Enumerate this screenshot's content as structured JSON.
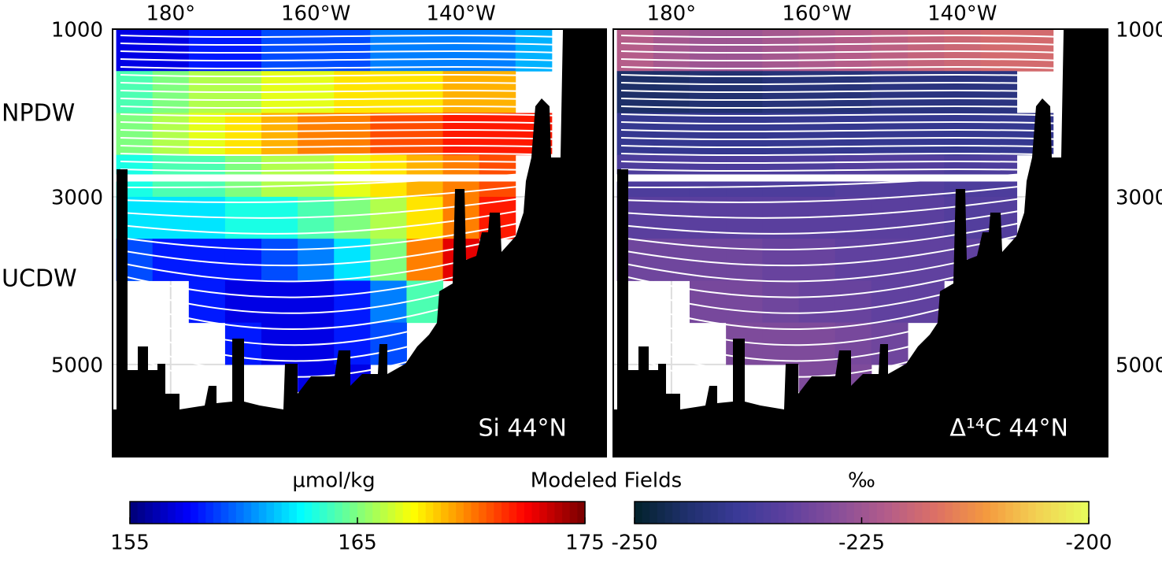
{
  "title": "Modeled Fields",
  "chart_data": [
    {
      "type": "heatmap",
      "label": "Si 44°N",
      "annotations": [
        "NPDW",
        "UCDW"
      ],
      "yaxis_side": "left",
      "x": [
        175,
        180,
        185,
        190,
        195,
        200,
        205,
        210,
        215,
        220,
        225,
        230,
        235
      ],
      "y": [
        1250,
        1750,
        2250,
        2750,
        3250,
        3750,
        4250,
        4750,
        5250
      ],
      "values": [
        [
          157,
          157,
          158,
          158,
          159,
          159,
          159,
          160,
          160,
          160,
          160,
          161,
          null
        ],
        [
          164,
          165,
          166,
          166,
          167,
          167,
          168,
          168,
          168,
          169,
          169,
          null,
          null
        ],
        [
          165,
          166,
          167,
          168,
          169,
          170,
          170,
          171,
          171,
          172,
          172,
          172,
          null
        ],
        [
          163,
          164,
          164,
          165,
          166,
          166,
          167,
          168,
          169,
          170,
          171,
          null,
          null
        ],
        [
          162,
          162,
          162,
          163,
          163,
          164,
          165,
          166,
          168,
          170,
          172,
          null,
          null
        ],
        [
          159,
          158,
          158,
          158,
          159,
          160,
          162,
          165,
          170,
          173,
          null,
          null,
          null
        ],
        [
          null,
          null,
          158,
          157,
          157,
          157,
          158,
          160,
          164,
          null,
          null,
          null,
          null
        ],
        [
          null,
          null,
          null,
          158,
          157,
          157,
          158,
          159,
          null,
          null,
          null,
          null,
          null
        ],
        [
          null,
          null,
          null,
          null,
          null,
          157,
          157,
          null,
          null,
          null,
          null,
          null,
          null
        ]
      ],
      "xlim": [
        172,
        240
      ],
      "ylim": [
        1000,
        6100
      ],
      "xticks": [
        {
          "value": 180,
          "label": "180°"
        },
        {
          "value": 200,
          "label": "160°W"
        },
        {
          "value": 220,
          "label": "140°W"
        }
      ],
      "yticks": [
        1000,
        3000,
        5000
      ],
      "colorbar": {
        "label": "µmol/kg",
        "lim": [
          155,
          175
        ],
        "ticks": [
          155,
          165,
          175
        ],
        "colors": [
          "#00007f",
          "#0000ff",
          "#007fff",
          "#00ffff",
          "#7fff7f",
          "#ffff00",
          "#ff7f00",
          "#ff0000",
          "#7f0000"
        ]
      }
    },
    {
      "type": "heatmap",
      "label": "Δ¹⁴C 44°N",
      "yaxis_side": "right",
      "x": [
        175,
        180,
        185,
        190,
        195,
        200,
        205,
        210,
        215,
        220,
        225,
        230,
        235
      ],
      "y": [
        1250,
        1750,
        2250,
        2750,
        3250,
        3750,
        4250,
        4750,
        5250
      ],
      "values": [
        [
          -222,
          -224,
          -225,
          -225,
          -224,
          -223,
          -222,
          -221,
          -220,
          -219,
          -218,
          -218,
          null
        ],
        [
          -245,
          -245,
          -244,
          -244,
          -243,
          -243,
          -243,
          -242,
          -242,
          -242,
          -242,
          null,
          null
        ],
        [
          -240,
          -240,
          -240,
          -240,
          -240,
          -240,
          -240,
          -240,
          -240,
          -240,
          -240,
          -240,
          null
        ],
        [
          -236,
          -236,
          -236,
          -236,
          -236,
          -236,
          -235,
          -235,
          -235,
          -236,
          -236,
          null,
          null
        ],
        [
          -234,
          -234,
          -234,
          -234,
          -234,
          -234,
          -234,
          -234,
          -234,
          -235,
          -235,
          null,
          null
        ],
        [
          -231,
          -231,
          -231,
          -231,
          -232,
          -232,
          -233,
          -233,
          -233,
          -233,
          null,
          null,
          null
        ],
        [
          null,
          null,
          -230,
          -230,
          -231,
          -232,
          -232,
          -233,
          -233,
          null,
          null,
          null,
          null
        ],
        [
          null,
          null,
          null,
          -229,
          -229,
          -229,
          -230,
          -231,
          null,
          null,
          null,
          null,
          null
        ],
        [
          null,
          null,
          null,
          null,
          null,
          -229,
          -229,
          null,
          null,
          null,
          null,
          null,
          null
        ]
      ],
      "xlim": [
        172,
        240
      ],
      "ylim": [
        1000,
        6100
      ],
      "xticks": [
        {
          "value": 180,
          "label": "180°"
        },
        {
          "value": 200,
          "label": "160°W"
        },
        {
          "value": 220,
          "label": "140°W"
        }
      ],
      "yticks": [
        1000,
        3000,
        5000
      ],
      "colorbar": {
        "label": "‰",
        "lim": [
          -250,
          -200
        ],
        "ticks": [
          -250,
          -225,
          -200
        ],
        "colors": [
          "#04232f",
          "#20306e",
          "#3a3a98",
          "#5e409f",
          "#874e9a",
          "#b35c8a",
          "#dd7065",
          "#f4993f",
          "#f3cf52",
          "#e8fa5b"
        ]
      }
    }
  ]
}
